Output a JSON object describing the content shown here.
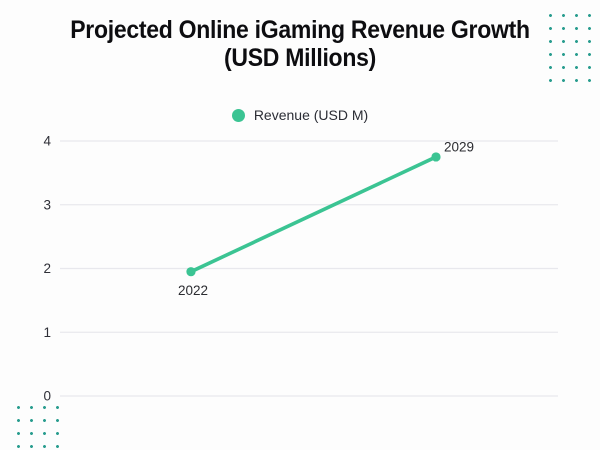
{
  "title": {
    "line1": "Projected Online iGaming Revenue Growth",
    "line2": "(USD Millions)"
  },
  "legend": {
    "label": "Revenue (USD M)"
  },
  "chart_data": {
    "type": "line",
    "categories": [
      "2022",
      "2029"
    ],
    "series": [
      {
        "name": "Revenue (USD M)",
        "values": [
          1.95,
          3.75
        ]
      }
    ],
    "point_labels": [
      "2022",
      "2029"
    ],
    "title": "Projected Online iGaming Revenue Growth (USD Millions)",
    "xlabel": "",
    "ylabel": "",
    "ylim": [
      0,
      4
    ],
    "yticks": [
      0,
      1,
      2,
      3,
      4
    ],
    "grid": true,
    "legend_position": "top-center",
    "line_color": "#3bc493",
    "point_color": "#3bc493"
  },
  "colors": {
    "accent_teal": "#3bc493",
    "dot_grid_teal": "#2a9d8f",
    "gridline": "#e8e8ed",
    "axis_text": "#2e2f37",
    "title_text": "#0d0d10",
    "background": "#fdfdfd"
  }
}
